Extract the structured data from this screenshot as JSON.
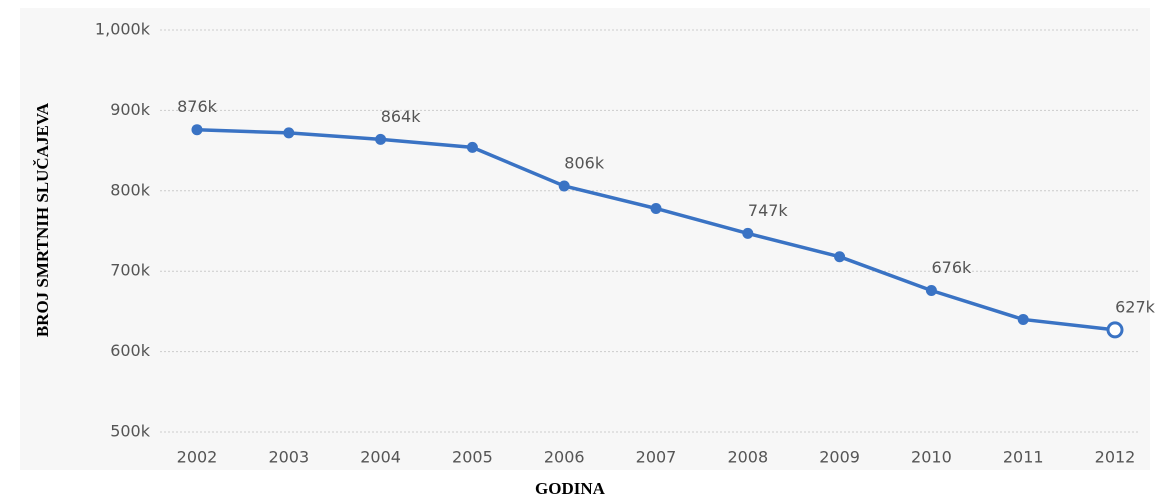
{
  "chart_data": {
    "type": "line",
    "y_label": "BROJ SMRTNIH SLUČAJEVA",
    "x_label": "GODINA",
    "categories": [
      "2002",
      "2003",
      "2004",
      "2005",
      "2006",
      "2007",
      "2008",
      "2009",
      "2010",
      "2011",
      "2012"
    ],
    "series": [
      {
        "color": "#3a73c4",
        "values": [
          876000,
          872000,
          864000,
          854000,
          806000,
          778000,
          747000,
          718000,
          676000,
          640000,
          627000
        ],
        "value_labels": [
          "876k",
          null,
          "864k",
          null,
          "806k",
          null,
          "747k",
          null,
          "676k",
          null,
          "627k"
        ]
      }
    ],
    "ylim": [
      500000,
      1000000
    ],
    "yticks": [
      {
        "value": 500000,
        "label": "500k"
      },
      {
        "value": 600000,
        "label": "600k"
      },
      {
        "value": 700000,
        "label": "700k"
      },
      {
        "value": 800000,
        "label": "800k"
      },
      {
        "value": 900000,
        "label": "900k"
      },
      {
        "value": 1000000,
        "label": "1,000k"
      }
    ],
    "grid": true
  }
}
